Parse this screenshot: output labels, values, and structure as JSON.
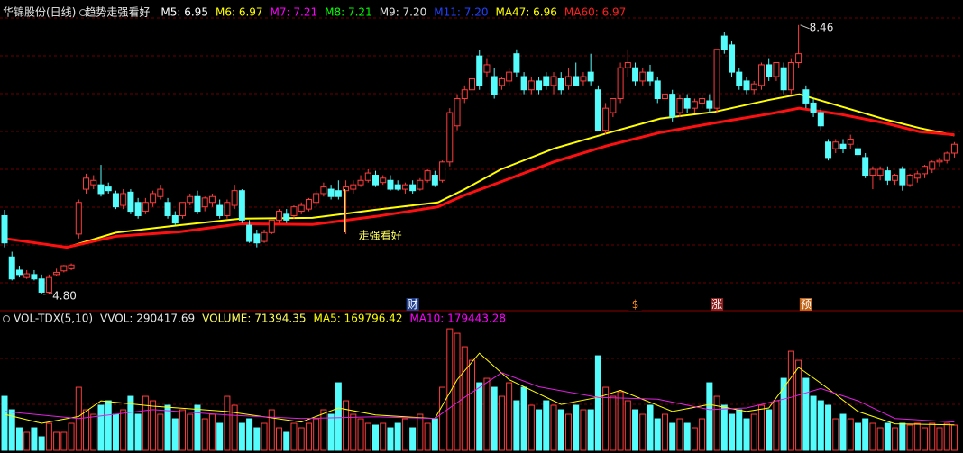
{
  "chart_data": [
    {
      "type": "candlestick",
      "title": "华锦股份(日线)",
      "indicator": "趋势走强看好",
      "legend": [
        {
          "text": "M5: 6.95",
          "color": "#ffffff"
        },
        {
          "text": "M6: 6.97",
          "color": "#ffff00"
        },
        {
          "text": "M7: 7.21",
          "color": "#ff00ff"
        },
        {
          "text": "M8: 7.21",
          "color": "#00ff00"
        },
        {
          "text": "M9: 7.20",
          "color": "#e0e0e0"
        },
        {
          "text": "M11: 7.20",
          "color": "#2040ff"
        },
        {
          "text": "MA47: 6.96",
          "color": "#ffff00"
        },
        {
          "text": "MA60: 6.97",
          "color": "#ff2020"
        }
      ],
      "open": [
        5.87,
        5.31,
        5.13,
        5.03,
        5.07,
        5.01,
        4.83,
        5.07,
        5.12,
        5.15,
        5.62,
        6.23,
        6.29,
        6.29,
        6.26,
        6.17,
        6.01,
        6.19,
        6.05,
        5.93,
        6.05,
        6.13,
        6.05,
        5.87,
        5.87,
        6.05,
        6.13,
        5.99,
        6.05,
        6.01,
        5.87,
        6.01,
        6.21,
        5.74,
        5.62,
        5.52,
        5.64,
        5.81,
        5.89,
        5.87,
        5.93,
        5.96,
        6.05,
        6.17,
        6.23,
        6.21,
        6.21,
        6.23,
        6.29,
        6.35,
        6.42,
        6.32,
        6.35,
        6.29,
        6.23,
        6.29,
        6.23,
        6.35,
        6.42,
        6.35,
        6.6,
        7.09,
        7.46,
        7.58,
        8.04,
        7.82,
        7.76,
        7.64,
        7.7,
        8.07,
        7.76,
        7.58,
        7.7,
        7.76,
        7.64,
        7.73,
        7.64,
        7.76,
        7.7,
        7.82,
        7.58,
        7.03,
        7.27,
        7.46,
        7.88,
        7.88,
        7.7,
        7.82,
        7.7,
        7.46,
        7.52,
        7.27,
        7.46,
        7.33,
        7.4,
        7.43,
        7.33,
        8.31,
        8.19,
        7.82,
        7.7,
        7.58,
        7.64,
        7.92,
        7.76,
        7.88,
        7.58,
        7.95,
        7.58,
        7.4,
        7.27,
        6.87,
        6.78,
        6.84,
        6.84,
        6.78,
        6.66,
        6.42,
        6.42,
        6.48,
        6.35,
        6.5,
        6.29,
        6.38,
        6.44,
        6.5,
        6.6,
        6.62,
        6.72
      ],
      "high": [
        5.95,
        5.38,
        5.19,
        5.13,
        5.13,
        5.07,
        5.07,
        5.15,
        5.2,
        5.22,
        6.09,
        6.44,
        6.42,
        6.56,
        6.32,
        6.21,
        6.23,
        6.23,
        6.11,
        6.11,
        6.21,
        6.29,
        6.11,
        5.93,
        6.05,
        6.17,
        6.21,
        6.13,
        6.17,
        6.09,
        6.09,
        6.29,
        6.23,
        5.81,
        5.68,
        5.68,
        5.81,
        5.96,
        5.96,
        6.01,
        6.05,
        6.11,
        6.21,
        6.32,
        6.29,
        6.35,
        6.35,
        6.35,
        6.42,
        6.5,
        6.48,
        6.42,
        6.42,
        6.35,
        6.32,
        6.35,
        6.38,
        6.5,
        6.48,
        6.62,
        7.33,
        7.52,
        7.64,
        7.76,
        8.12,
        8.01,
        7.88,
        7.76,
        7.88,
        8.13,
        7.82,
        7.76,
        7.76,
        7.82,
        7.82,
        7.82,
        7.88,
        7.95,
        7.82,
        8.07,
        7.64,
        7.4,
        7.46,
        7.95,
        8.13,
        7.95,
        7.88,
        7.92,
        7.76,
        7.58,
        7.58,
        7.52,
        7.52,
        7.46,
        7.52,
        7.52,
        8.13,
        8.37,
        8.25,
        7.88,
        7.76,
        7.7,
        7.95,
        8.01,
        7.95,
        7.95,
        8.01,
        8.46,
        7.64,
        7.46,
        7.33,
        6.91,
        6.91,
        6.91,
        6.97,
        6.84,
        6.72,
        6.54,
        6.54,
        6.54,
        6.44,
        6.54,
        6.44,
        6.48,
        6.56,
        6.62,
        6.66,
        6.74,
        6.87
      ],
      "low": [
        5.44,
        4.99,
        5.03,
        5.01,
        4.99,
        4.8,
        4.8,
        5.05,
        5.1,
        5.13,
        5.56,
        6.17,
        6.23,
        6.13,
        6.17,
        5.96,
        5.96,
        5.89,
        5.83,
        5.89,
        5.99,
        6.09,
        5.83,
        5.74,
        5.83,
        6.01,
        5.89,
        5.93,
        5.99,
        5.83,
        5.83,
        5.96,
        5.77,
        5.5,
        5.44,
        5.5,
        5.62,
        5.77,
        5.77,
        5.83,
        5.89,
        5.93,
        5.99,
        6.13,
        6.09,
        6.09,
        5.62,
        6.17,
        6.26,
        6.32,
        6.26,
        6.29,
        6.21,
        6.21,
        6.17,
        6.17,
        6.21,
        6.32,
        6.26,
        6.32,
        6.54,
        7.03,
        7.4,
        7.52,
        7.58,
        7.76,
        7.46,
        7.58,
        7.64,
        7.76,
        7.52,
        7.52,
        7.52,
        7.58,
        7.52,
        7.52,
        7.58,
        7.64,
        7.64,
        7.64,
        7.03,
        6.97,
        7.21,
        7.4,
        7.76,
        7.64,
        7.64,
        7.64,
        7.4,
        7.4,
        7.15,
        7.21,
        7.27,
        7.27,
        7.33,
        7.27,
        7.27,
        8.07,
        7.76,
        7.58,
        7.52,
        7.52,
        7.58,
        7.7,
        7.7,
        7.52,
        7.52,
        7.88,
        7.33,
        7.21,
        7.03,
        6.62,
        6.72,
        6.72,
        6.78,
        6.66,
        6.38,
        6.23,
        6.35,
        6.29,
        6.29,
        6.21,
        6.26,
        6.32,
        6.38,
        6.45,
        6.54,
        6.58,
        6.66
      ],
      "close": [
        5.5,
        5.01,
        5.07,
        5.08,
        5.01,
        4.83,
        5.03,
        5.1,
        5.19,
        5.2,
        6.05,
        6.38,
        6.35,
        6.17,
        6.21,
        5.99,
        6.17,
        5.93,
        5.87,
        6.05,
        6.17,
        6.23,
        5.87,
        5.77,
        6.05,
        6.13,
        5.93,
        6.11,
        6.13,
        5.87,
        6.05,
        6.21,
        5.81,
        5.52,
        5.5,
        5.64,
        5.81,
        5.93,
        5.81,
        5.99,
        6.01,
        6.09,
        6.17,
        6.26,
        6.13,
        6.13,
        6.26,
        6.29,
        6.35,
        6.45,
        6.29,
        6.38,
        6.23,
        6.23,
        6.29,
        6.21,
        6.35,
        6.48,
        6.29,
        6.6,
        7.27,
        7.46,
        7.58,
        7.73,
        7.64,
        7.92,
        7.52,
        7.73,
        7.82,
        7.82,
        7.58,
        7.7,
        7.58,
        7.64,
        7.76,
        7.58,
        7.76,
        7.64,
        7.76,
        7.7,
        7.03,
        7.33,
        7.46,
        7.88,
        7.95,
        7.7,
        7.82,
        7.7,
        7.46,
        7.52,
        7.21,
        7.46,
        7.33,
        7.42,
        7.46,
        7.33,
        8.13,
        8.13,
        7.82,
        7.64,
        7.58,
        7.66,
        7.92,
        7.76,
        7.95,
        7.58,
        7.95,
        8.07,
        7.4,
        7.27,
        7.09,
        6.66,
        6.87,
        6.78,
        6.91,
        6.7,
        6.42,
        6.5,
        6.5,
        6.35,
        6.42,
        6.29,
        6.42,
        6.44,
        6.54,
        6.6,
        6.62,
        6.72,
        6.84
      ],
      "up_color": "#ff3c3c",
      "down_color": "#54fcfc",
      "ylim": [
        4.64,
        8.58
      ],
      "lines": [
        {
          "color": "#ffff00",
          "x": [
            0,
            8.4,
            15,
            23.5,
            31.9,
            41.5,
            50,
            58.4,
            62,
            66.9,
            74,
            81.2,
            88.4,
            95.7,
            102.9,
            107.1,
            112.5,
            118.6,
            123.3,
            128
          ],
          "values": [
            5.56,
            5.44,
            5.64,
            5.74,
            5.83,
            5.84,
            5.95,
            6.05,
            6.23,
            6.5,
            6.78,
            6.99,
            7.19,
            7.28,
            7.44,
            7.52,
            7.36,
            7.18,
            7.06,
            6.96
          ]
        },
        {
          "color": "#ff1010",
          "x": [
            0,
            8.4,
            15,
            23.5,
            31.9,
            41.5,
            50,
            58.4,
            62,
            66.9,
            74,
            81.2,
            88.4,
            95.7,
            102.9,
            107.1,
            112.5,
            118.6,
            123.3,
            128
          ],
          "values": [
            5.56,
            5.44,
            5.59,
            5.65,
            5.76,
            5.75,
            5.86,
            5.99,
            6.15,
            6.33,
            6.6,
            6.82,
            7.0,
            7.13,
            7.25,
            7.33,
            7.25,
            7.13,
            7.01,
            6.97
          ]
        }
      ],
      "annotations": [
        {
          "text": "8.46",
          "x": 107,
          "y": 8.46
        },
        {
          "text": "4.80",
          "x": 5,
          "y": 4.8
        }
      ],
      "signal": {
        "text": "走强看好",
        "x": 46
      },
      "events": [
        {
          "text": "财",
          "x": 55,
          "color": "#ffffff",
          "background": "#1f3f8f"
        },
        {
          "text": "$",
          "x": 85,
          "color": "#ff8c1a",
          "background": "#000000"
        },
        {
          "text": "涨",
          "x": 96,
          "color": "#ffffff",
          "background": "#8f1f1f"
        },
        {
          "text": "预",
          "x": 108,
          "color": "#ffffff",
          "background": "#c06010"
        }
      ]
    },
    {
      "type": "volume",
      "title": "VOL-TDX(5,10)",
      "legend": [
        {
          "text": "VVOL: 290417.69",
          "color": "#e8e8e8"
        },
        {
          "text": "VOLUME: 71394.35",
          "color": "#ffff60"
        },
        {
          "text": "MA5: 169796.42",
          "color": "#ffff00"
        },
        {
          "text": "MA10: 179443.28",
          "color": "#ff00ff"
        }
      ],
      "values": [
        153000,
        114750,
        63750,
        51000,
        63750,
        38250,
        76500,
        51000,
        51000,
        76500,
        178500,
        114750,
        102000,
        127500,
        140250,
        102000,
        114750,
        153000,
        102000,
        153000,
        140250,
        102000,
        127500,
        89250,
        114750,
        102000,
        127500,
        89250,
        102000,
        76500,
        153000,
        127500,
        76500,
        89250,
        63750,
        76500,
        114750,
        63750,
        51000,
        76500,
        63750,
        76500,
        89250,
        114750,
        102000,
        191250,
        140250,
        102000,
        89250,
        76500,
        71400,
        76500,
        63750,
        76500,
        89250,
        63750,
        102000,
        76500,
        89250,
        178500,
        344250,
        331500,
        293250,
        255000,
        191250,
        204000,
        178500,
        153000,
        191250,
        140250,
        178500,
        127500,
        114750,
        140250,
        127500,
        114750,
        102000,
        127500,
        114750,
        114750,
        267750,
        178500,
        153000,
        165750,
        140250,
        114750,
        102000,
        127500,
        89250,
        102000,
        76500,
        89250,
        76500,
        63750,
        89250,
        191250,
        153000,
        127500,
        102000,
        114750,
        89250,
        102000,
        127500,
        114750,
        140250,
        204000,
        280500,
        255000,
        204000,
        153000,
        140250,
        127500,
        89250,
        102000,
        89250,
        76500,
        89250,
        76500,
        63750,
        76500,
        63750,
        76500,
        71400,
        76500,
        63750,
        76500,
        63750,
        76500,
        71394
      ],
      "ylim": [
        0,
        370000
      ],
      "lines": [
        {
          "color": "#ffff00",
          "x": [
            0,
            5,
            10,
            13,
            20,
            30,
            40,
            45,
            50,
            58,
            61,
            64,
            68,
            75,
            80,
            83,
            90,
            95,
            100,
            103,
            107,
            110,
            115,
            120,
            128
          ],
          "values": [
            102000,
            76500,
            96000,
            140000,
            125000,
            110000,
            80000,
            120000,
            100000,
            90000,
            200000,
            275000,
            200000,
            130000,
            150000,
            170000,
            110000,
            130000,
            110000,
            120000,
            235000,
            190000,
            110000,
            75000,
            72000
          ]
        },
        {
          "color": "#e020e0",
          "x": [
            0,
            10,
            20,
            30,
            40,
            50,
            58,
            62,
            67,
            72,
            80,
            88,
            95,
            100,
            106,
            110,
            115,
            120,
            128
          ],
          "values": [
            110000,
            90000,
            115000,
            100000,
            90000,
            95000,
            90000,
            150000,
            220000,
            180000,
            150000,
            145000,
            115000,
            120000,
            150000,
            175000,
            140000,
            90000,
            80000
          ]
        }
      ]
    }
  ]
}
